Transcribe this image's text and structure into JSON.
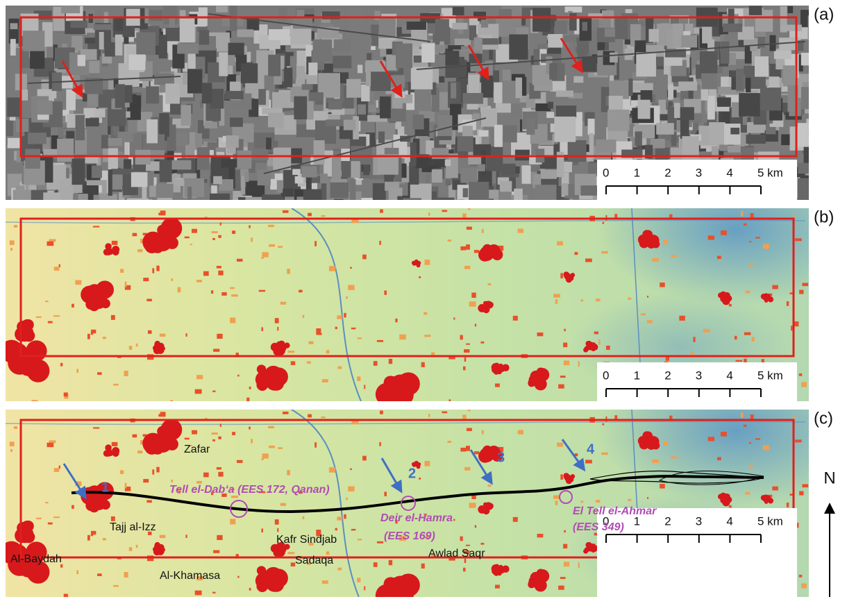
{
  "panels": [
    {
      "label": "(a)",
      "scale_bar": [
        "0",
        "1",
        "2",
        "3",
        "4",
        "5 km"
      ]
    },
    {
      "label": "(b)",
      "scale_bar": [
        "0",
        "1",
        "2",
        "3",
        "4",
        "5 km"
      ]
    },
    {
      "label": "(c)",
      "scale_bar": [
        "0",
        "1",
        "2",
        "3",
        "4",
        "5 km"
      ],
      "places": [
        "Zafar",
        "Tajj al-Izz",
        "Kafr Sindjab",
        "Al-Baydah",
        "Sadaqa",
        "Awlad Saqr",
        "Al-Khamasa"
      ],
      "sites": [
        {
          "lines": [
            "Tell el-Dab‘a (EES 172, Qanan)"
          ]
        },
        {
          "lines": [
            "Deir el-Hamra",
            "(EES 169)"
          ]
        },
        {
          "lines": [
            "El Tell el-Ahmar",
            "(EES 349)"
          ]
        }
      ],
      "arrows": [
        "1",
        "2",
        "3",
        "4"
      ]
    }
  ],
  "north": "N"
}
